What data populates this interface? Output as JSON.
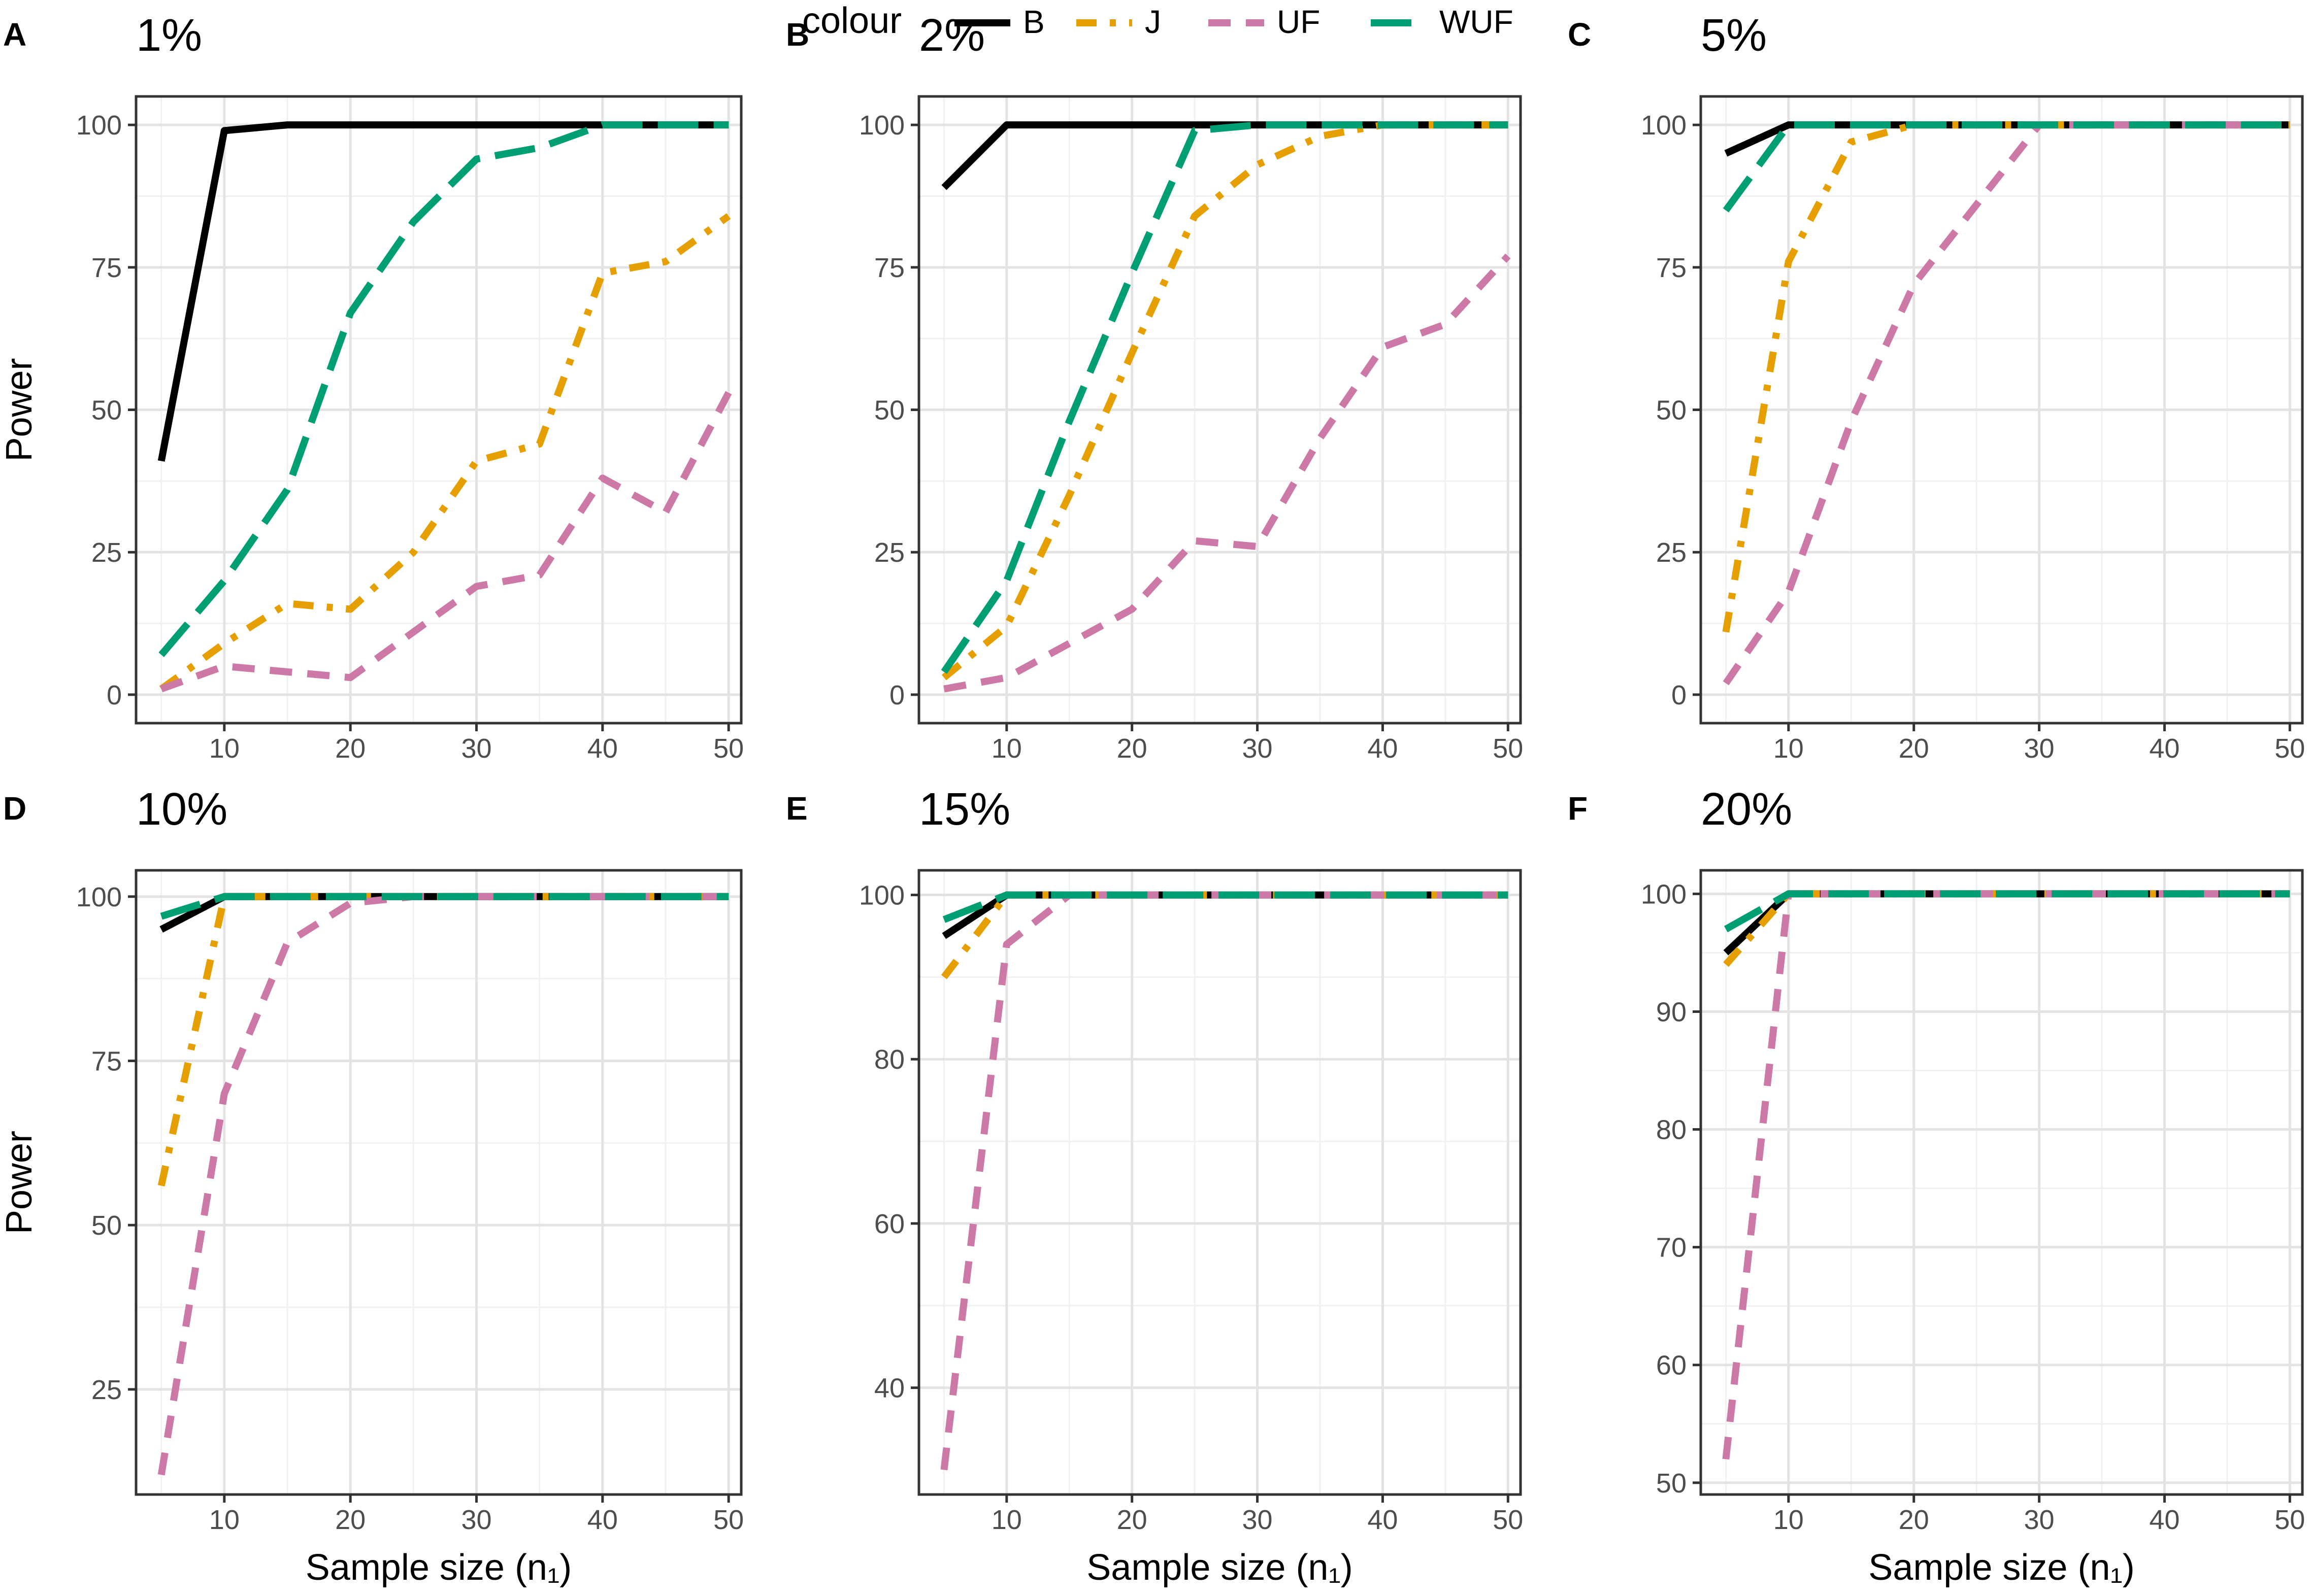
{
  "legend": {
    "title": "colour",
    "entries": [
      {
        "key": "B",
        "label": "B",
        "color": "#000000",
        "dash": "solid"
      },
      {
        "key": "J",
        "label": "J",
        "color": "#E69F00",
        "dash": "dotdash"
      },
      {
        "key": "UF",
        "label": "UF",
        "color": "#CC79A7",
        "dash": "dashed"
      },
      {
        "key": "WUF",
        "label": "WUF",
        "color": "#009E73",
        "dash": "longdash"
      }
    ]
  },
  "chart_data": [
    {
      "type": "line",
      "panel": "A",
      "title": "1%",
      "xlabel": "",
      "ylabel": "Power",
      "xlim": [
        3,
        51
      ],
      "ylim": [
        -5,
        105
      ],
      "yticks": [
        0,
        25,
        50,
        75,
        100
      ],
      "xticks": [
        10,
        20,
        30,
        40,
        50
      ],
      "x": [
        5,
        10,
        15,
        20,
        25,
        30,
        35,
        40,
        45,
        50
      ],
      "series": [
        {
          "name": "B",
          "values": [
            41,
            99,
            100,
            100,
            100,
            100,
            100,
            100,
            100,
            100
          ]
        },
        {
          "name": "J",
          "values": [
            1,
            9,
            16,
            15,
            25,
            41,
            44,
            74,
            76,
            84
          ]
        },
        {
          "name": "UF",
          "values": [
            1,
            5,
            4,
            3,
            11,
            19,
            21,
            38,
            32,
            53
          ]
        },
        {
          "name": "WUF",
          "values": [
            7,
            20,
            36,
            67,
            83,
            94,
            96,
            100,
            100,
            100
          ]
        }
      ]
    },
    {
      "type": "line",
      "panel": "B",
      "title": "2%",
      "xlabel": "",
      "ylabel": "",
      "xlim": [
        3,
        51
      ],
      "ylim": [
        -5,
        105
      ],
      "yticks": [
        0,
        25,
        50,
        75,
        100
      ],
      "xticks": [
        10,
        20,
        30,
        40,
        50
      ],
      "x": [
        5,
        10,
        15,
        20,
        25,
        30,
        35,
        40,
        45,
        50
      ],
      "series": [
        {
          "name": "B",
          "values": [
            89,
            100,
            100,
            100,
            100,
            100,
            100,
            100,
            100,
            100
          ]
        },
        {
          "name": "J",
          "values": [
            3,
            12,
            35,
            60,
            84,
            93,
            98,
            100,
            100,
            100
          ]
        },
        {
          "name": "UF",
          "values": [
            1,
            3,
            9,
            15,
            27,
            26,
            45,
            61,
            65,
            77
          ]
        },
        {
          "name": "WUF",
          "values": [
            4,
            20,
            48,
            74,
            99,
            100,
            100,
            100,
            100,
            100
          ]
        }
      ]
    },
    {
      "type": "line",
      "panel": "C",
      "title": "5%",
      "xlabel": "",
      "ylabel": "",
      "xlim": [
        3,
        51
      ],
      "ylim": [
        -5,
        105
      ],
      "yticks": [
        0,
        25,
        50,
        75,
        100
      ],
      "xticks": [
        10,
        20,
        30,
        40,
        50
      ],
      "x": [
        5,
        10,
        15,
        20,
        25,
        30,
        35,
        40,
        45,
        50
      ],
      "series": [
        {
          "name": "B",
          "values": [
            95,
            100,
            100,
            100,
            100,
            100,
            100,
            100,
            100,
            100
          ]
        },
        {
          "name": "J",
          "values": [
            11,
            76,
            97,
            100,
            100,
            100,
            100,
            100,
            100,
            100
          ]
        },
        {
          "name": "UF",
          "values": [
            2,
            18,
            48,
            72,
            86,
            100,
            100,
            100,
            100,
            100
          ]
        },
        {
          "name": "WUF",
          "values": [
            85,
            100,
            100,
            100,
            100,
            100,
            100,
            100,
            100,
            100
          ]
        }
      ]
    },
    {
      "type": "line",
      "panel": "D",
      "title": "10%",
      "xlabel": "Sample size (n₁)",
      "ylabel": "Power",
      "xlim": [
        3,
        51
      ],
      "ylim": [
        9,
        104
      ],
      "yticks": [
        25,
        50,
        75,
        100
      ],
      "xticks": [
        10,
        20,
        30,
        40,
        50
      ],
      "x": [
        5,
        10,
        15,
        20,
        25,
        30,
        35,
        40,
        45,
        50
      ],
      "series": [
        {
          "name": "B",
          "values": [
            95,
            100,
            100,
            100,
            100,
            100,
            100,
            100,
            100,
            100
          ]
        },
        {
          "name": "J",
          "values": [
            56,
            100,
            100,
            100,
            100,
            100,
            100,
            100,
            100,
            100
          ]
        },
        {
          "name": "UF",
          "values": [
            12,
            70,
            93,
            99,
            100,
            100,
            100,
            100,
            100,
            100
          ]
        },
        {
          "name": "WUF",
          "values": [
            97,
            100,
            100,
            100,
            100,
            100,
            100,
            100,
            100,
            100
          ]
        }
      ]
    },
    {
      "type": "line",
      "panel": "E",
      "title": "15%",
      "xlabel": "Sample size (n₁)",
      "ylabel": "",
      "xlim": [
        3,
        51
      ],
      "ylim": [
        27,
        103
      ],
      "yticks": [
        40,
        60,
        80,
        100
      ],
      "xticks": [
        10,
        20,
        30,
        40,
        50
      ],
      "x": [
        5,
        10,
        15,
        20,
        25,
        30,
        35,
        40,
        45,
        50
      ],
      "series": [
        {
          "name": "B",
          "values": [
            95,
            100,
            100,
            100,
            100,
            100,
            100,
            100,
            100,
            100
          ]
        },
        {
          "name": "J",
          "values": [
            90,
            100,
            100,
            100,
            100,
            100,
            100,
            100,
            100,
            100
          ]
        },
        {
          "name": "UF",
          "values": [
            30,
            94,
            100,
            100,
            100,
            100,
            100,
            100,
            100,
            100
          ]
        },
        {
          "name": "WUF",
          "values": [
            97,
            100,
            100,
            100,
            100,
            100,
            100,
            100,
            100,
            100
          ]
        }
      ]
    },
    {
      "type": "line",
      "panel": "F",
      "title": "20%",
      "xlabel": "Sample size (n₁)",
      "ylabel": "",
      "xlim": [
        3,
        51
      ],
      "ylim": [
        49,
        102
      ],
      "yticks": [
        50,
        60,
        70,
        80,
        90,
        100
      ],
      "xticks": [
        10,
        20,
        30,
        40,
        50
      ],
      "x": [
        5,
        10,
        15,
        20,
        25,
        30,
        35,
        40,
        45,
        50
      ],
      "series": [
        {
          "name": "B",
          "values": [
            95,
            100,
            100,
            100,
            100,
            100,
            100,
            100,
            100,
            100
          ]
        },
        {
          "name": "J",
          "values": [
            94,
            100,
            100,
            100,
            100,
            100,
            100,
            100,
            100,
            100
          ]
        },
        {
          "name": "UF",
          "values": [
            52,
            100,
            100,
            100,
            100,
            100,
            100,
            100,
            100,
            100
          ]
        },
        {
          "name": "WUF",
          "values": [
            97,
            100,
            100,
            100,
            100,
            100,
            100,
            100,
            100,
            100
          ]
        }
      ]
    }
  ]
}
